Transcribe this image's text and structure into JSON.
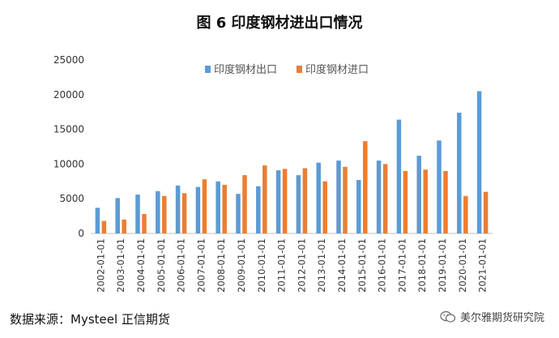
{
  "chart_data": {
    "type": "bar",
    "title": "图 6 印度钢材进出口情况",
    "categories": [
      "2002-01-01",
      "2003-01-01",
      "2004-01-01",
      "2005-01-01",
      "2006-01-01",
      "2007-01-01",
      "2008-01-01",
      "2009-01-01",
      "2010-01-01",
      "2011-01-01",
      "2012-01-01",
      "2013-01-01",
      "2014-01-01",
      "2015-01-01",
      "2016-01-01",
      "2017-01-01",
      "2018-01-01",
      "2019-01-01",
      "2020-01-01",
      "2021-01-01"
    ],
    "series": [
      {
        "name": "印度钢材出口",
        "color": "#5B9BD5",
        "values": [
          3700,
          5100,
          5600,
          6100,
          6900,
          6700,
          7500,
          5700,
          6800,
          9100,
          8400,
          10200,
          10500,
          7700,
          10500,
          16400,
          11200,
          13400,
          17400,
          20500
        ]
      },
      {
        "name": "印度钢材进口",
        "color": "#ED7D31",
        "values": [
          1800,
          2000,
          2800,
          5400,
          5800,
          7800,
          7000,
          8400,
          9800,
          9300,
          9400,
          7500,
          9600,
          13300,
          10000,
          9000,
          9200,
          9000,
          5400,
          6000
        ]
      }
    ],
    "ylim": [
      0,
      25000
    ],
    "yticks": [
      "0",
      "5000",
      "10000",
      "15000",
      "20000",
      "25000"
    ],
    "legend": "top",
    "grid": false
  },
  "source_note": "数据来源：Mysteel 正信期货",
  "watermark": "美尔雅期货研究院",
  "watermark_icon": "wechat-icon"
}
